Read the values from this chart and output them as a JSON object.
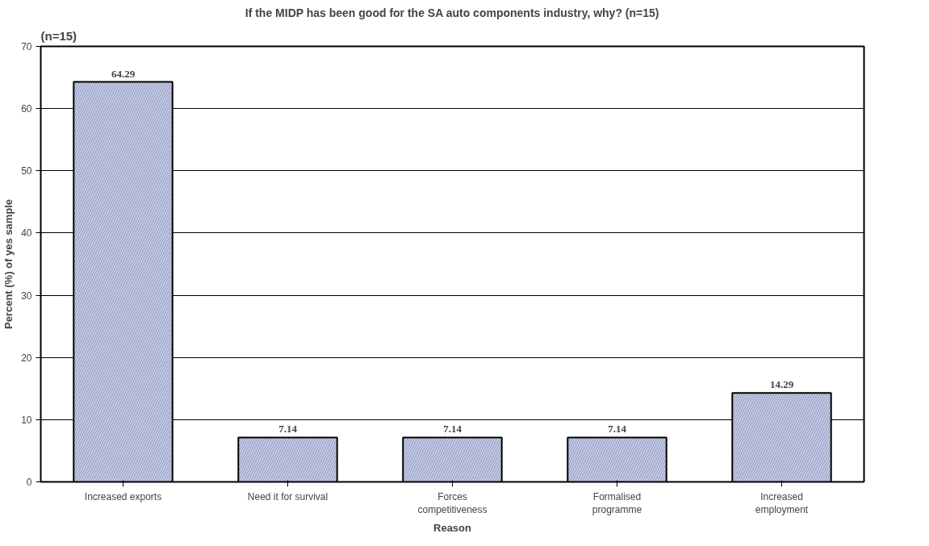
{
  "chart_data": {
    "type": "bar",
    "title": "If the MIDP has been good for the SA auto components industry, why? (n=15)",
    "xlabel": "Reason",
    "ylabel": "Percent (%) of yes sample",
    "categories": [
      "Increased exports",
      "Need it for survival",
      "Forces\ncompetitiveness",
      "Formalised\nprogramme",
      "Increased\nemployment"
    ],
    "values": [
      64.29,
      7.14,
      7.14,
      7.14,
      14.29
    ],
    "color": "#c9cde0",
    "ylim": [
      0,
      70
    ],
    "yticks": [
      0,
      10,
      20,
      30,
      40,
      50,
      60,
      70
    ],
    "grid": "y",
    "data_labels": true,
    "annotations": [
      "(n=15)"
    ]
  }
}
